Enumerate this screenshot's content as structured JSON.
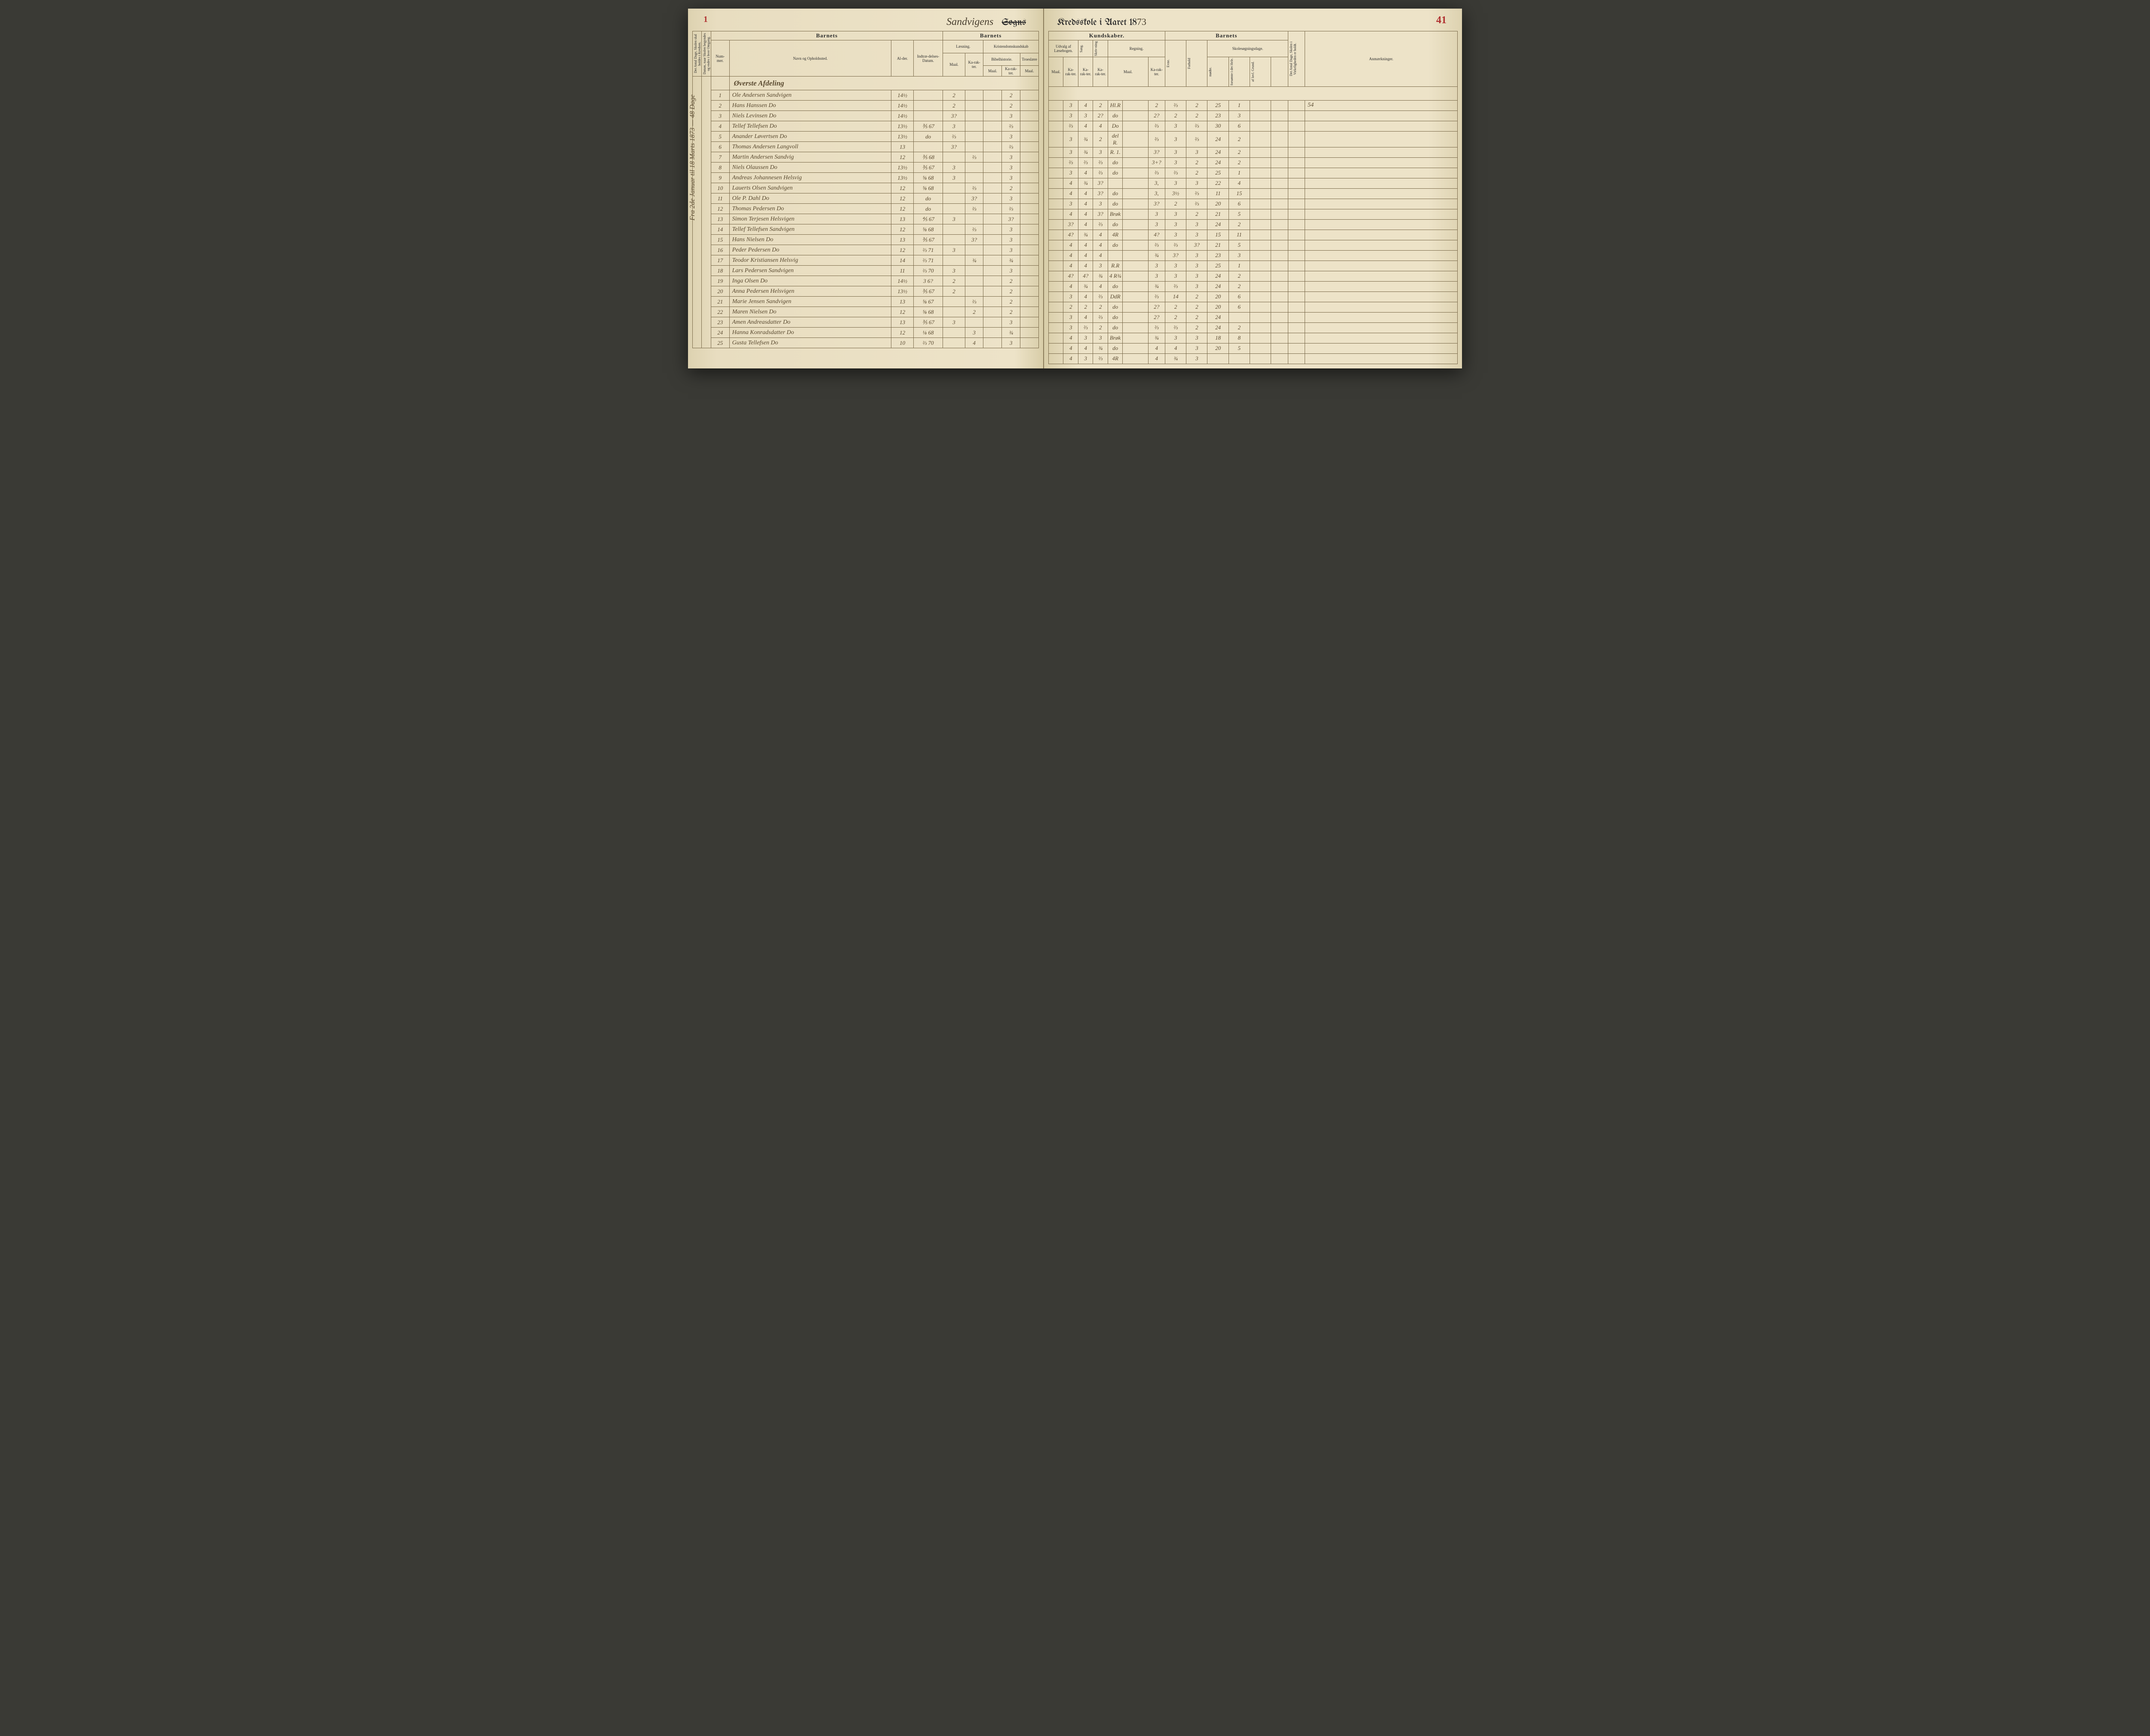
{
  "page_number_left": "1",
  "page_number_right": "41",
  "title_handwritten": "Sandvigens",
  "title_struck": "Sogns",
  "title_right_print": "Kredsskole i Aaret 18",
  "title_year_hand": "73",
  "margin_note": "Fra 2de Januar til 18 Marts 1873 — 48 Dage",
  "headers": {
    "barnets": "Barnets",
    "kundskaber": "Kundskaber.",
    "laesning": "Læsning.",
    "kristendom": "Kristendomskundskab",
    "udvalg": "Udvalg af Læsebogen.",
    "sang": "Sang.",
    "skrivning": "Skriv-ning",
    "regning": "Regning.",
    "skolesogning": "Skolesøgningsdage.",
    "anm": "Anmærkninger.",
    "nummer": "Num-mer.",
    "navn": "Navn og Opholdssted.",
    "alder": "Al-der.",
    "indtr": "Indtræ-delses-Datum.",
    "bibel": "Bibelhistorie.",
    "troes": "Troeslære",
    "maal": "Maal.",
    "karakter": "Ka-rak-ter.",
    "evne": "Evne.",
    "forhold": "Forhold",
    "modte": "mødte.",
    "forsomte": "forsømte i det Hele.",
    "lovlgrund": "af lovl. Grund.",
    "side1": "Det Antal Dage, Skolen skal holdes i Kredsen.",
    "side2": "Datum, naar Skolen begyndes og endes i hver Omgang.",
    "side3": "Det Antal Dage, Skolen i Virkeligheden er holdt."
  },
  "section_heading": "Øverste Afdeling",
  "rows": [
    {
      "n": "1",
      "name": "Ole Andersen Sandvigen",
      "age": "14½",
      "date": "",
      "l_m": "2",
      "l_k": "",
      "b_m": "",
      "b_k": "2",
      "t_m": "",
      "u_m": "",
      "u_k": "3",
      "sa": "4",
      "sk": "2",
      "r_m": "Hl.R",
      "r_k": "2",
      "ev": "⅔",
      "fo": "2",
      "mo": "25",
      "f1": "1",
      "f2": "",
      "anm": "54"
    },
    {
      "n": "2",
      "name": "Hans Hanssen   Do",
      "age": "14½",
      "date": "",
      "l_m": "2",
      "l_k": "",
      "b_m": "",
      "b_k": "2",
      "t_m": "",
      "u_m": "",
      "u_k": "3",
      "sa": "3",
      "sk": "2?",
      "r_m": "do",
      "r_k": "2?",
      "ev": "2",
      "fo": "2",
      "mo": "23",
      "f1": "3",
      "f2": "",
      "anm": ""
    },
    {
      "n": "3",
      "name": "Niels Levinsen   Do",
      "age": "14½",
      "date": "",
      "l_m": "3?",
      "l_k": "",
      "b_m": "",
      "b_k": "3",
      "t_m": "",
      "u_m": "",
      "u_k": "⅔",
      "sa": "4",
      "sk": "4",
      "r_m": "Do",
      "r_k": "⅔",
      "ev": "3",
      "fo": "⅔",
      "mo": "30",
      "f1": "6",
      "f2": "",
      "anm": ""
    },
    {
      "n": "4",
      "name": "Tellef Tellefsen   Do",
      "age": "13½",
      "date": "⅗ 67",
      "l_m": "3",
      "l_k": "",
      "b_m": "",
      "b_k": "⅔",
      "t_m": "",
      "u_m": "",
      "u_k": "3",
      "sa": "¾",
      "sk": "2",
      "r_m": "del R.",
      "r_k": "⅔",
      "ev": "3",
      "fo": "⅔",
      "mo": "24",
      "f1": "2",
      "f2": "",
      "anm": ""
    },
    {
      "n": "5",
      "name": "Anander Løvertsen   Do",
      "age": "13½",
      "date": "do",
      "l_m": "⅔",
      "l_k": "",
      "b_m": "",
      "b_k": "3",
      "t_m": "",
      "u_m": "",
      "u_k": "3",
      "sa": "¾",
      "sk": "3",
      "r_m": "R. 1.",
      "r_k": "3?",
      "ev": "3",
      "fo": "3",
      "mo": "24",
      "f1": "2",
      "f2": "",
      "anm": ""
    },
    {
      "n": "6",
      "name": "Thomas Andersen Langvoll",
      "age": "13",
      "date": "",
      "l_m": "3?",
      "l_k": "",
      "b_m": "",
      "b_k": "⅔",
      "t_m": "",
      "u_m": "",
      "u_k": "⅔",
      "sa": "⅔",
      "sk": "⅔",
      "r_m": "do",
      "r_k": "3+?",
      "ev": "3",
      "fo": "2",
      "mo": "24",
      "f1": "2",
      "f2": "",
      "anm": ""
    },
    {
      "n": "7",
      "name": "Martin Andersen Sandvig",
      "age": "12",
      "date": "⅗ 68",
      "l_m": "",
      "l_k": "⅔",
      "b_m": "",
      "b_k": "3",
      "t_m": "",
      "u_m": "",
      "u_k": "3",
      "sa": "4",
      "sk": "⅔",
      "r_m": "do",
      "r_k": "⅔",
      "ev": "⅔",
      "fo": "2",
      "mo": "25",
      "f1": "1",
      "f2": "",
      "anm": ""
    },
    {
      "n": "8",
      "name": "Niels Olaussen   Do",
      "age": "13½",
      "date": "⅗ 67",
      "l_m": "3",
      "l_k": "",
      "b_m": "",
      "b_k": "3",
      "t_m": "",
      "u_m": "",
      "u_k": "4",
      "sa": "¾",
      "sk": "3?",
      "r_m": "",
      "r_k": "3,",
      "ev": "3",
      "fo": "3",
      "mo": "22",
      "f1": "4",
      "f2": "",
      "anm": ""
    },
    {
      "n": "9",
      "name": "Andreas Johannesen Helsvig",
      "age": "13½",
      "date": "⅝ 68",
      "l_m": "3",
      "l_k": "",
      "b_m": "",
      "b_k": "3",
      "t_m": "",
      "u_m": "",
      "u_k": "4",
      "sa": "4",
      "sk": "3?",
      "r_m": "do",
      "r_k": "3,",
      "ev": "3½",
      "fo": "⅔",
      "mo": "11",
      "f1": "15",
      "f2": "",
      "anm": ""
    },
    {
      "n": "10",
      "name": "Lauerts Olsen Sandvigen",
      "age": "12",
      "date": "⅝ 68",
      "l_m": "",
      "l_k": "⅔",
      "b_m": "",
      "b_k": "2",
      "t_m": "",
      "u_m": "",
      "u_k": "3",
      "sa": "4",
      "sk": "3",
      "r_m": "do",
      "r_k": "3?",
      "ev": "2",
      "fo": "⅔",
      "mo": "20",
      "f1": "6",
      "f2": "",
      "anm": ""
    },
    {
      "n": "11",
      "name": "Ole P. Dahl   Do",
      "age": "12",
      "date": "do",
      "l_m": "",
      "l_k": "3?",
      "b_m": "",
      "b_k": "3",
      "t_m": "",
      "u_m": "",
      "u_k": "4",
      "sa": "4",
      "sk": "3?",
      "r_m": "Brøk",
      "r_k": "3",
      "ev": "3",
      "fo": "2",
      "mo": "21",
      "f1": "5",
      "f2": "",
      "anm": ""
    },
    {
      "n": "12",
      "name": "Thomas Pedersen   Do",
      "age": "12",
      "date": "do",
      "l_m": "",
      "l_k": "⅔",
      "b_m": "",
      "b_k": "⅔",
      "t_m": "",
      "u_m": "",
      "u_k": "3?",
      "sa": "4",
      "sk": "⅔",
      "r_m": "do",
      "r_k": "3",
      "ev": "3",
      "fo": "3",
      "mo": "24",
      "f1": "2",
      "f2": "",
      "anm": ""
    },
    {
      "n": "13",
      "name": "Simon Terjesen Helsvigen",
      "age": "13",
      "date": "⅘ 67",
      "l_m": "3",
      "l_k": "",
      "b_m": "",
      "b_k": "3?",
      "t_m": "",
      "u_m": "",
      "u_k": "4?",
      "sa": "¾",
      "sk": "4",
      "r_m": "4R",
      "r_k": "4?",
      "ev": "3",
      "fo": "3",
      "mo": "15",
      "f1": "11",
      "f2": "",
      "anm": ""
    },
    {
      "n": "14",
      "name": "Tellef Tellefsen Sandvigen",
      "age": "12",
      "date": "⅝ 68",
      "l_m": "",
      "l_k": "⅔",
      "b_m": "",
      "b_k": "3",
      "t_m": "",
      "u_m": "",
      "u_k": "4",
      "sa": "4",
      "sk": "4",
      "r_m": "do",
      "r_k": "⅔",
      "ev": "⅔",
      "fo": "3?",
      "mo": "21",
      "f1": "5",
      "f2": "",
      "anm": ""
    },
    {
      "n": "15",
      "name": "Hans Nielsen   Do",
      "age": "13",
      "date": "⅗ 67",
      "l_m": "",
      "l_k": "3?",
      "b_m": "",
      "b_k": "3",
      "t_m": "",
      "u_m": "",
      "u_k": "4",
      "sa": "4",
      "sk": "4",
      "r_m": "",
      "r_k": "¾",
      "ev": "3?",
      "fo": "3",
      "mo": "23",
      "f1": "3",
      "f2": "",
      "anm": ""
    },
    {
      "n": "16",
      "name": "Peder Pedersen   Do",
      "age": "12",
      "date": "⅔ 71",
      "l_m": "3",
      "l_k": "",
      "b_m": "",
      "b_k": "3",
      "t_m": "",
      "u_m": "",
      "u_k": "4",
      "sa": "4",
      "sk": "3",
      "r_m": "R.R",
      "r_k": "3",
      "ev": "3",
      "fo": "3",
      "mo": "25",
      "f1": "1",
      "f2": "",
      "anm": ""
    },
    {
      "n": "17",
      "name": "Teodor Kristiansen Helsvig",
      "age": "14",
      "date": "⅔ 71",
      "l_m": "",
      "l_k": "¾",
      "b_m": "",
      "b_k": "¾",
      "t_m": "",
      "u_m": "",
      "u_k": "4?",
      "sa": "4?",
      "sk": "¾",
      "r_m": "4 R¾",
      "r_k": "3",
      "ev": "3",
      "fo": "3",
      "mo": "24",
      "f1": "2",
      "f2": "",
      "anm": ""
    },
    {
      "n": "18",
      "name": "Lars Pedersen Sandvigen",
      "age": "11",
      "date": "⅔ 70",
      "l_m": "3",
      "l_k": "",
      "b_m": "",
      "b_k": "3",
      "t_m": "",
      "u_m": "",
      "u_k": "4",
      "sa": "¾",
      "sk": "4",
      "r_m": "do",
      "r_k": "¾",
      "ev": "⅔",
      "fo": "3",
      "mo": "24",
      "f1": "2",
      "f2": "",
      "anm": ""
    },
    {
      "n": "19",
      "name": "Inga Olsen   Do",
      "age": "14½",
      "date": "3 6?",
      "l_m": "2",
      "l_k": "",
      "b_m": "",
      "b_k": "2",
      "t_m": "",
      "u_m": "",
      "u_k": "3",
      "sa": "4",
      "sk": "⅔",
      "r_m": "DdR",
      "r_k": "⅔",
      "ev": "14",
      "fo": "2",
      "mo": "20",
      "f1": "6",
      "f2": "",
      "anm": ""
    },
    {
      "n": "20",
      "name": "Anna Pedersen Helsvigen",
      "age": "13½",
      "date": "⅗ 67",
      "l_m": "2",
      "l_k": "",
      "b_m": "",
      "b_k": "2",
      "t_m": "",
      "u_m": "",
      "u_k": "2",
      "sa": "2",
      "sk": "2",
      "r_m": "do",
      "r_k": "2?",
      "ev": "2",
      "fo": "2",
      "mo": "20",
      "f1": "6",
      "f2": "",
      "anm": ""
    },
    {
      "n": "21",
      "name": "Marie Jensen Sandvigen",
      "age": "13",
      "date": "⅝ 67",
      "l_m": "",
      "l_k": "⅔",
      "b_m": "",
      "b_k": "2",
      "t_m": "",
      "u_m": "",
      "u_k": "3",
      "sa": "4",
      "sk": "⅔",
      "r_m": "do",
      "r_k": "2?",
      "ev": "2",
      "fo": "2",
      "mo": "24",
      "f1": "",
      "f2": "",
      "anm": ""
    },
    {
      "n": "22",
      "name": "Maren Nielsen   Do",
      "age": "12",
      "date": "⅝ 68",
      "l_m": "",
      "l_k": "2",
      "b_m": "",
      "b_k": "2",
      "t_m": "",
      "u_m": "",
      "u_k": "3",
      "sa": "⅔",
      "sk": "2",
      "r_m": "do",
      "r_k": "⅔",
      "ev": "⅔",
      "fo": "2",
      "mo": "24",
      "f1": "2",
      "f2": "",
      "anm": ""
    },
    {
      "n": "23",
      "name": "Amen Andreasdatter Do",
      "age": "13",
      "date": "⅗ 67",
      "l_m": "3",
      "l_k": "",
      "b_m": "",
      "b_k": "3",
      "t_m": "",
      "u_m": "",
      "u_k": "4",
      "sa": "3",
      "sk": "3",
      "r_m": "Brøk",
      "r_k": "¾",
      "ev": "3",
      "fo": "3",
      "mo": "18",
      "f1": "8",
      "f2": "",
      "anm": ""
    },
    {
      "n": "24",
      "name": "Hanna Konradsdatter Do",
      "age": "12",
      "date": "⅛ 68",
      "l_m": "",
      "l_k": "3",
      "b_m": "",
      "b_k": "¾",
      "t_m": "",
      "u_m": "",
      "u_k": "4",
      "sa": "4",
      "sk": "¾",
      "r_m": "do",
      "r_k": "4",
      "ev": "4",
      "fo": "3",
      "mo": "20",
      "f1": "5",
      "f2": "",
      "anm": ""
    },
    {
      "n": "25",
      "name": "Gusta Tellefsen   Do",
      "age": "10",
      "date": "⅔ 70",
      "l_m": "",
      "l_k": "4",
      "b_m": "",
      "b_k": "3",
      "t_m": "",
      "u_m": "",
      "u_k": "4",
      "sa": "3",
      "sk": "⅔",
      "r_m": "4R",
      "r_k": "4",
      "ev": "¾",
      "fo": "3",
      "mo": "",
      "f1": "",
      "f2": "",
      "anm": ""
    }
  ]
}
